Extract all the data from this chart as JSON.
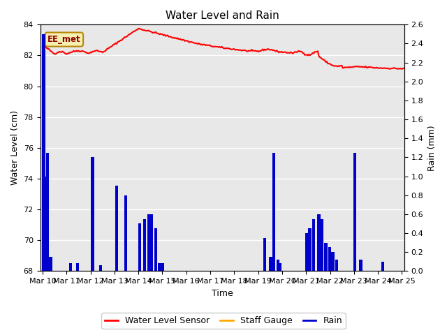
{
  "title": "Water Level and Rain",
  "xlabel": "Time",
  "ylabel_left": "Water Level (cm)",
  "ylabel_right": "Rain (mm)",
  "annotation_text": "EE_met",
  "wl_ylim": [
    68,
    84
  ],
  "rain_ylim": [
    0.0,
    2.6
  ],
  "wl_yticks": [
    68,
    70,
    72,
    74,
    76,
    78,
    80,
    82,
    84
  ],
  "rain_yticks": [
    0.0,
    0.2,
    0.4,
    0.6,
    0.8,
    1.0,
    1.2,
    1.4,
    1.6,
    1.8,
    2.0,
    2.2,
    2.4,
    2.6
  ],
  "fig_bg_color": "#ffffff",
  "plot_bg_color": "#e8e8e8",
  "wl_color": "#ff0000",
  "rain_color": "#0000cc",
  "staff_color": "#ffaa00",
  "legend_labels": [
    "Water Level Sensor",
    "Staff Gauge",
    "Rain"
  ],
  "legend_colors": [
    "#ff0000",
    "#ffaa00",
    "#0000cc"
  ],
  "xtick_labels": [
    "Mar 10",
    "Mar 11",
    "Mar 12",
    "Mar 13",
    "Mar 14",
    "Mar 15",
    "Mar 16",
    "Mar 17",
    "Mar 18",
    "Mar 19",
    "Mar 20",
    "Mar 21",
    "Mar 22",
    "Mar 23",
    "Mar 24",
    "Mar 25"
  ],
  "figsize": [
    6.4,
    4.8
  ],
  "dpi": 100
}
